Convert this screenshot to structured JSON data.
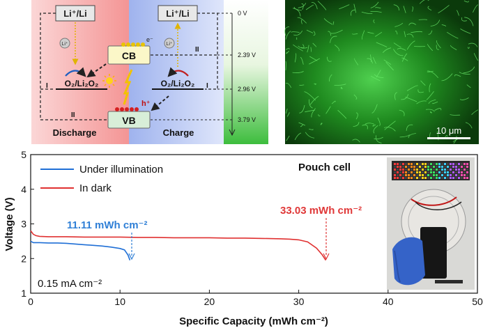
{
  "scheme": {
    "nodes": {
      "li_left": "Li⁺/Li",
      "li_right": "Li⁺/Li",
      "cb": "CB",
      "vb": "VB",
      "o2_left": "O₂/Li₂O₂",
      "o2_right": "O₂/Li₂O₂",
      "li_ion": "Li⁺",
      "electron": "e⁻",
      "hole": "h⁺"
    },
    "path_labels": {
      "p1_left": "I",
      "p2_left": "II",
      "p1_right": "I",
      "p2_right": "II"
    },
    "panel_labels": {
      "discharge": "Discharge",
      "charge": "Charge"
    },
    "potentials": [
      "0 V",
      "2.39 V",
      "2.96 V",
      "3.79 V"
    ],
    "colors": {
      "discharge_bg": "#f49a9a",
      "charge_bg": "#9fb6ee",
      "gap_bg": "#4dc44d"
    }
  },
  "micrograph": {
    "scale_bar": "10 μm"
  },
  "chart_data": {
    "type": "line",
    "xlabel": "Specific Capacity (mWh cm⁻²)",
    "ylabel": "Voltage (V)",
    "xlim": [
      0,
      50
    ],
    "ylim": [
      1,
      5
    ],
    "xticks": [
      "0",
      "10",
      "20",
      "30",
      "40",
      "50"
    ],
    "yticks": [
      "1",
      "2",
      "3",
      "4",
      "5"
    ],
    "series": [
      {
        "name": "Under illumination",
        "color": "#1f6fd6",
        "x": [
          0,
          0.3,
          0.6,
          1,
          2,
          3,
          4,
          5,
          6,
          7,
          8,
          9,
          10,
          10.5,
          10.9,
          11.11
        ],
        "y": [
          2.5,
          2.46,
          2.46,
          2.46,
          2.45,
          2.45,
          2.44,
          2.42,
          2.4,
          2.38,
          2.36,
          2.33,
          2.29,
          2.25,
          2.1,
          1.95
        ]
      },
      {
        "name": "In dark",
        "color": "#e03030",
        "x": [
          0,
          0.3,
          0.6,
          1,
          2,
          4,
          6,
          8,
          10,
          12,
          14,
          16,
          18,
          20,
          22,
          24,
          26,
          28,
          29,
          30,
          31,
          32,
          32.6,
          33.03
        ],
        "y": [
          2.8,
          2.7,
          2.66,
          2.64,
          2.63,
          2.63,
          2.62,
          2.62,
          2.62,
          2.61,
          2.61,
          2.6,
          2.6,
          2.6,
          2.59,
          2.59,
          2.58,
          2.57,
          2.56,
          2.54,
          2.48,
          2.3,
          2.12,
          1.95
        ]
      }
    ],
    "legend": "top-left",
    "annotations": {
      "illum_capacity": "11.11 mWh cm⁻²",
      "dark_capacity": "33.03 mWh cm⁻²",
      "pouch": "Pouch cell",
      "current": "0.15 mA cm⁻²"
    },
    "grid": false
  }
}
